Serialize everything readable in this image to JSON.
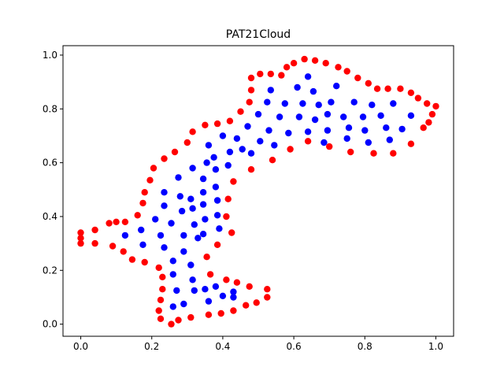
{
  "chart_data": {
    "type": "scatter",
    "title": "PAT21Cloud",
    "xlabel": "",
    "ylabel": "",
    "xlim": [
      -0.05,
      1.05
    ],
    "ylim": [
      -0.045,
      1.035
    ],
    "x_ticks": [
      "0.0",
      "0.2",
      "0.4",
      "0.6",
      "0.8",
      "1.0"
    ],
    "y_ticks": [
      "0.0",
      "0.2",
      "0.4",
      "0.6",
      "0.8",
      "1.0"
    ],
    "grid": false,
    "legend": "none",
    "series": [
      {
        "color": "#ff0000",
        "points": [
          [
            0.0,
            0.34
          ],
          [
            0.0,
            0.32
          ],
          [
            0.0,
            0.3
          ],
          [
            0.04,
            0.35
          ],
          [
            0.04,
            0.3
          ],
          [
            0.08,
            0.375
          ],
          [
            0.1,
            0.38
          ],
          [
            0.125,
            0.38
          ],
          [
            0.09,
            0.29
          ],
          [
            0.12,
            0.27
          ],
          [
            0.145,
            0.24
          ],
          [
            0.16,
            0.405
          ],
          [
            0.18,
            0.23
          ],
          [
            0.175,
            0.45
          ],
          [
            0.18,
            0.49
          ],
          [
            0.195,
            0.535
          ],
          [
            0.205,
            0.58
          ],
          [
            0.235,
            0.615
          ],
          [
            0.265,
            0.64
          ],
          [
            0.3,
            0.675
          ],
          [
            0.315,
            0.715
          ],
          [
            0.35,
            0.74
          ],
          [
            0.385,
            0.745
          ],
          [
            0.42,
            0.755
          ],
          [
            0.45,
            0.79
          ],
          [
            0.475,
            0.825
          ],
          [
            0.48,
            0.87
          ],
          [
            0.48,
            0.915
          ],
          [
            0.505,
            0.93
          ],
          [
            0.535,
            0.93
          ],
          [
            0.565,
            0.925
          ],
          [
            0.58,
            0.955
          ],
          [
            0.6,
            0.97
          ],
          [
            0.63,
            0.985
          ],
          [
            0.66,
            0.98
          ],
          [
            0.69,
            0.97
          ],
          [
            0.725,
            0.955
          ],
          [
            0.75,
            0.94
          ],
          [
            0.78,
            0.915
          ],
          [
            0.81,
            0.895
          ],
          [
            0.835,
            0.875
          ],
          [
            0.865,
            0.875
          ],
          [
            0.9,
            0.875
          ],
          [
            0.93,
            0.86
          ],
          [
            0.95,
            0.84
          ],
          [
            0.975,
            0.82
          ],
          [
            1.0,
            0.81
          ],
          [
            0.99,
            0.78
          ],
          [
            0.98,
            0.75
          ],
          [
            0.965,
            0.73
          ],
          [
            0.93,
            0.67
          ],
          [
            0.88,
            0.635
          ],
          [
            0.825,
            0.635
          ],
          [
            0.76,
            0.64
          ],
          [
            0.7,
            0.66
          ],
          [
            0.64,
            0.68
          ],
          [
            0.59,
            0.65
          ],
          [
            0.54,
            0.61
          ],
          [
            0.48,
            0.575
          ],
          [
            0.43,
            0.53
          ],
          [
            0.415,
            0.465
          ],
          [
            0.41,
            0.4
          ],
          [
            0.425,
            0.34
          ],
          [
            0.385,
            0.295
          ],
          [
            0.355,
            0.25
          ],
          [
            0.365,
            0.185
          ],
          [
            0.41,
            0.165
          ],
          [
            0.44,
            0.155
          ],
          [
            0.475,
            0.14
          ],
          [
            0.525,
            0.13
          ],
          [
            0.525,
            0.1
          ],
          [
            0.495,
            0.08
          ],
          [
            0.465,
            0.07
          ],
          [
            0.43,
            0.05
          ],
          [
            0.395,
            0.04
          ],
          [
            0.36,
            0.035
          ],
          [
            0.31,
            0.025
          ],
          [
            0.275,
            0.015
          ],
          [
            0.255,
            0.0
          ],
          [
            0.225,
            0.02
          ],
          [
            0.22,
            0.05
          ],
          [
            0.225,
            0.09
          ],
          [
            0.23,
            0.13
          ],
          [
            0.23,
            0.175
          ],
          [
            0.22,
            0.21
          ]
        ]
      },
      {
        "color": "#0000ff",
        "points": [
          [
            0.125,
            0.33
          ],
          [
            0.17,
            0.35
          ],
          [
            0.175,
            0.295
          ],
          [
            0.21,
            0.39
          ],
          [
            0.225,
            0.33
          ],
          [
            0.235,
            0.285
          ],
          [
            0.235,
            0.44
          ],
          [
            0.235,
            0.49
          ],
          [
            0.255,
            0.375
          ],
          [
            0.26,
            0.235
          ],
          [
            0.275,
            0.545
          ],
          [
            0.285,
            0.42
          ],
          [
            0.28,
            0.475
          ],
          [
            0.29,
            0.33
          ],
          [
            0.29,
            0.27
          ],
          [
            0.26,
            0.185
          ],
          [
            0.27,
            0.125
          ],
          [
            0.26,
            0.065
          ],
          [
            0.315,
            0.58
          ],
          [
            0.31,
            0.465
          ],
          [
            0.315,
            0.43
          ],
          [
            0.32,
            0.37
          ],
          [
            0.33,
            0.32
          ],
          [
            0.31,
            0.22
          ],
          [
            0.315,
            0.165
          ],
          [
            0.29,
            0.075
          ],
          [
            0.32,
            0.125
          ],
          [
            0.345,
            0.54
          ],
          [
            0.355,
            0.6
          ],
          [
            0.345,
            0.49
          ],
          [
            0.345,
            0.445
          ],
          [
            0.35,
            0.39
          ],
          [
            0.345,
            0.335
          ],
          [
            0.35,
            0.13
          ],
          [
            0.36,
            0.085
          ],
          [
            0.36,
            0.665
          ],
          [
            0.375,
            0.62
          ],
          [
            0.38,
            0.575
          ],
          [
            0.38,
            0.51
          ],
          [
            0.385,
            0.46
          ],
          [
            0.385,
            0.405
          ],
          [
            0.39,
            0.355
          ],
          [
            0.38,
            0.14
          ],
          [
            0.4,
            0.105
          ],
          [
            0.43,
            0.12
          ],
          [
            0.43,
            0.1
          ],
          [
            0.4,
            0.7
          ],
          [
            0.42,
            0.64
          ],
          [
            0.415,
            0.59
          ],
          [
            0.44,
            0.69
          ],
          [
            0.455,
            0.65
          ],
          [
            0.47,
            0.735
          ],
          [
            0.48,
            0.635
          ],
          [
            0.5,
            0.78
          ],
          [
            0.505,
            0.68
          ],
          [
            0.525,
            0.825
          ],
          [
            0.53,
            0.72
          ],
          [
            0.535,
            0.87
          ],
          [
            0.545,
            0.665
          ],
          [
            0.56,
            0.77
          ],
          [
            0.575,
            0.82
          ],
          [
            0.585,
            0.71
          ],
          [
            0.61,
            0.88
          ],
          [
            0.615,
            0.77
          ],
          [
            0.625,
            0.82
          ],
          [
            0.64,
            0.92
          ],
          [
            0.64,
            0.715
          ],
          [
            0.655,
            0.865
          ],
          [
            0.66,
            0.76
          ],
          [
            0.67,
            0.815
          ],
          [
            0.685,
            0.675
          ],
          [
            0.695,
            0.72
          ],
          [
            0.695,
            0.78
          ],
          [
            0.705,
            0.825
          ],
          [
            0.72,
            0.885
          ],
          [
            0.74,
            0.77
          ],
          [
            0.75,
            0.69
          ],
          [
            0.755,
            0.73
          ],
          [
            0.77,
            0.825
          ],
          [
            0.795,
            0.77
          ],
          [
            0.8,
            0.72
          ],
          [
            0.81,
            0.675
          ],
          [
            0.82,
            0.815
          ],
          [
            0.845,
            0.775
          ],
          [
            0.86,
            0.73
          ],
          [
            0.87,
            0.685
          ],
          [
            0.88,
            0.82
          ],
          [
            0.905,
            0.725
          ],
          [
            0.93,
            0.775
          ]
        ]
      }
    ]
  }
}
